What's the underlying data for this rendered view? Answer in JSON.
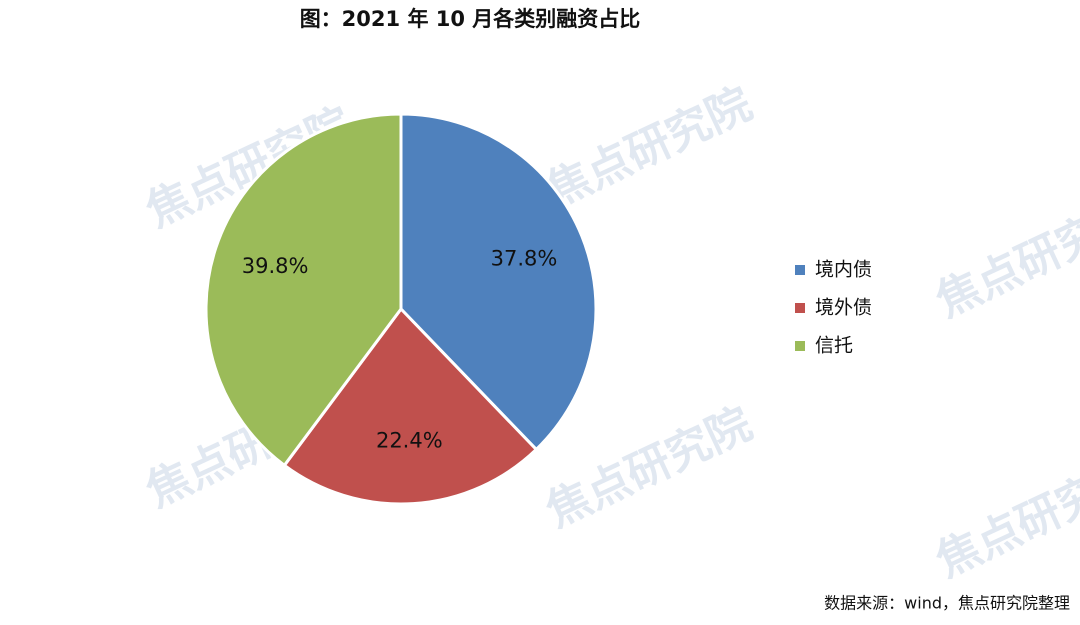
{
  "chart_data": {
    "type": "pie",
    "title": "图：2021 年 10 月各类别融资占比",
    "categories": [
      "境内债",
      "境外债",
      "信托"
    ],
    "values": [
      37.8,
      22.4,
      39.8
    ],
    "value_labels": [
      "37.8%",
      "22.4%",
      "39.8%"
    ],
    "colors": [
      "#4f81bd",
      "#c0504d",
      "#9bbb59"
    ],
    "legend": "right",
    "source": "数据来源：wind，焦点研究院整理",
    "watermark": "焦点研究院"
  }
}
